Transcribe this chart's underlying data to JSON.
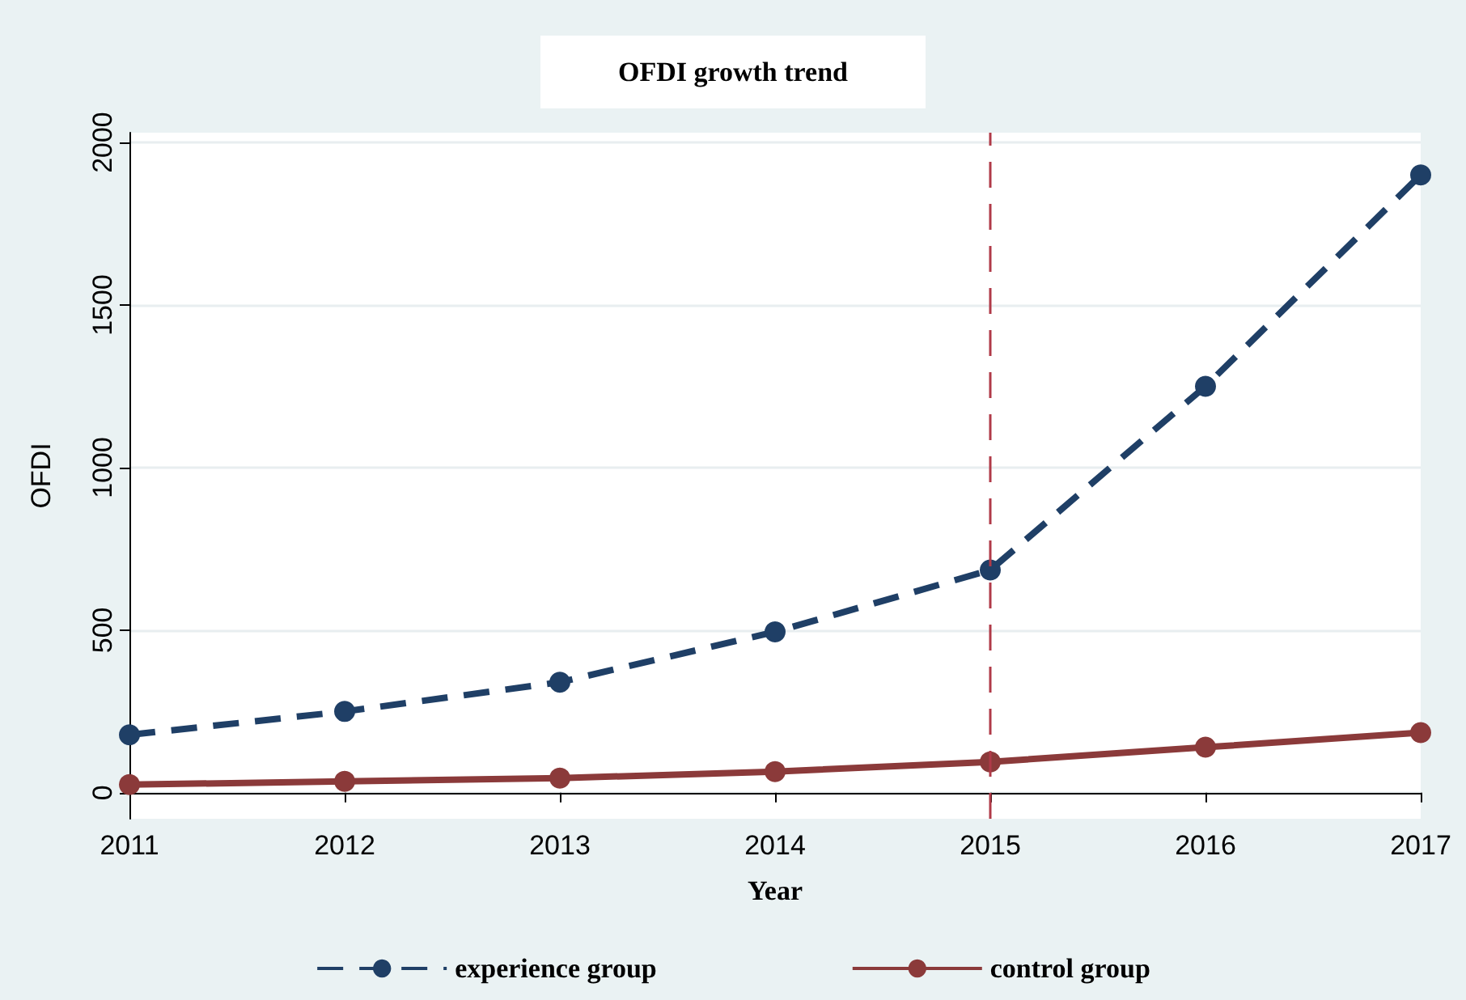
{
  "chart_data": {
    "type": "line",
    "title": "OFDI growth trend",
    "xlabel": "Year",
    "ylabel": "OFDI",
    "x": [
      2011,
      2012,
      2013,
      2014,
      2015,
      2016,
      2017
    ],
    "series": [
      {
        "name": "experience group",
        "color": "#1f3f66",
        "values": [
          178,
          250,
          340,
          495,
          685,
          1250,
          1900
        ],
        "line_style": "dashed"
      },
      {
        "name": "control group",
        "color": "#8b3a3a",
        "values": [
          25,
          35,
          45,
          65,
          95,
          140,
          185
        ],
        "line_style": "solid"
      }
    ],
    "xlim": [
      2011,
      2017
    ],
    "xticks": [
      2011,
      2012,
      2013,
      2014,
      2015,
      2016,
      2017
    ],
    "ylim": [
      -80,
      2030
    ],
    "yticks": [
      0,
      500,
      1000,
      1500,
      2000
    ],
    "ref_lines": [
      {
        "axis": "x",
        "value": 2015,
        "color": "#b03a48",
        "line_style": "dashed"
      }
    ],
    "grid": "y",
    "legend": "bottom",
    "marker": "circle"
  }
}
